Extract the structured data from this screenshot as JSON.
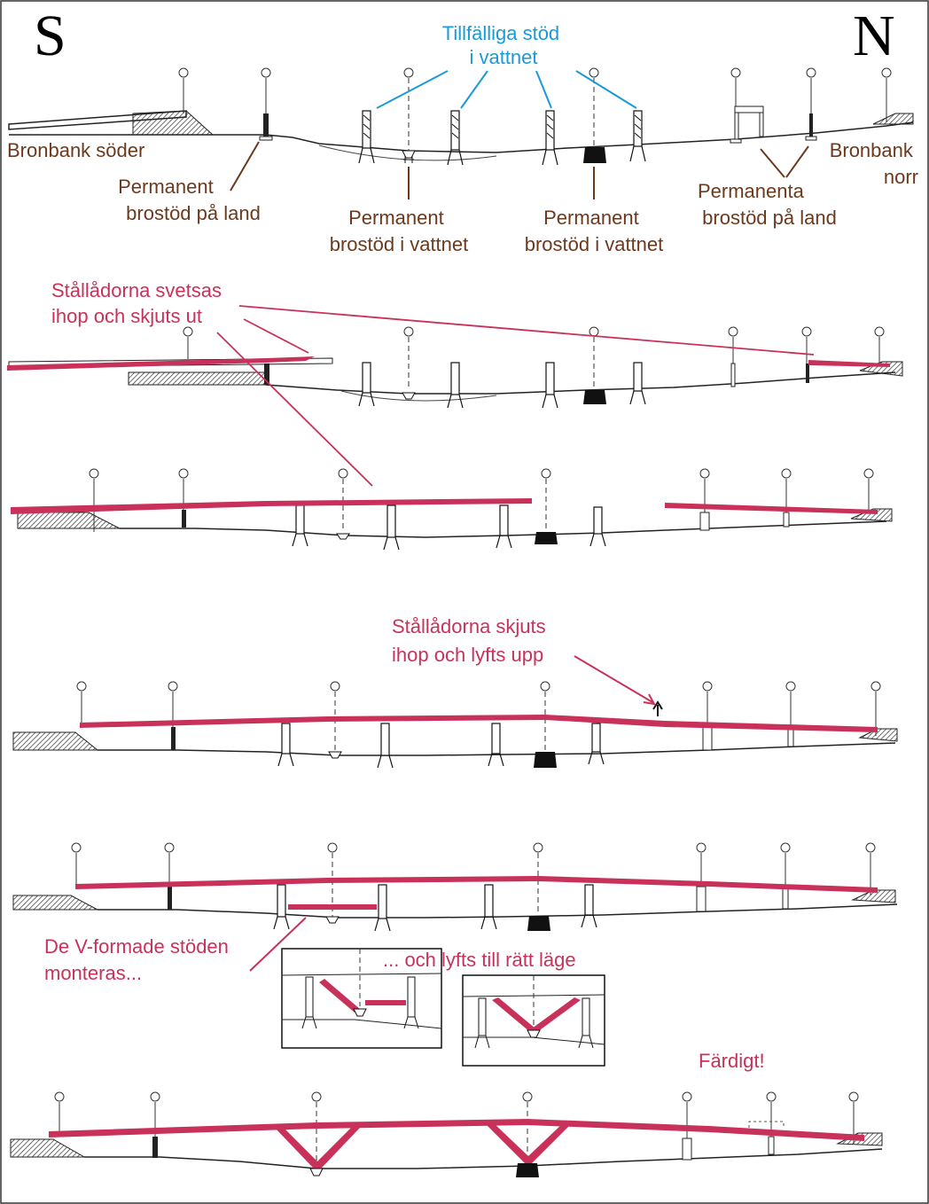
{
  "compass": {
    "south": "S",
    "north": "N"
  },
  "colors": {
    "highlight": "#c8325a",
    "annotation": "#6b3a1e",
    "temp_support_label": "#1a9ad6",
    "line": "#1a1a1a"
  },
  "stage1": {
    "temp_supports": [
      "Tillfälliga stöd",
      "i vattnet"
    ],
    "bank_south": "Bronbank söder",
    "bank_north": [
      "Bronbank",
      "norr"
    ],
    "land_support_left": [
      "Permanent",
      "brostöd på land"
    ],
    "water_support_1": [
      "Permanent",
      "brostöd i vattnet"
    ],
    "water_support_2": [
      "Permanent",
      "brostöd i vattnet"
    ],
    "land_supports_right": [
      "Permanenta",
      "brostöd på land"
    ]
  },
  "stage2": {
    "note": [
      "Stållådorna svetsas",
      "ihop och skjuts ut"
    ]
  },
  "stage4": {
    "note": [
      "Stållådorna skjuts",
      "ihop och lyfts upp"
    ]
  },
  "stage5": {
    "note": [
      "De V-formade stöden",
      "monteras..."
    ],
    "inset_note": "... och lyfts till rätt läge"
  },
  "stage6": {
    "note": "Färdigt!"
  }
}
